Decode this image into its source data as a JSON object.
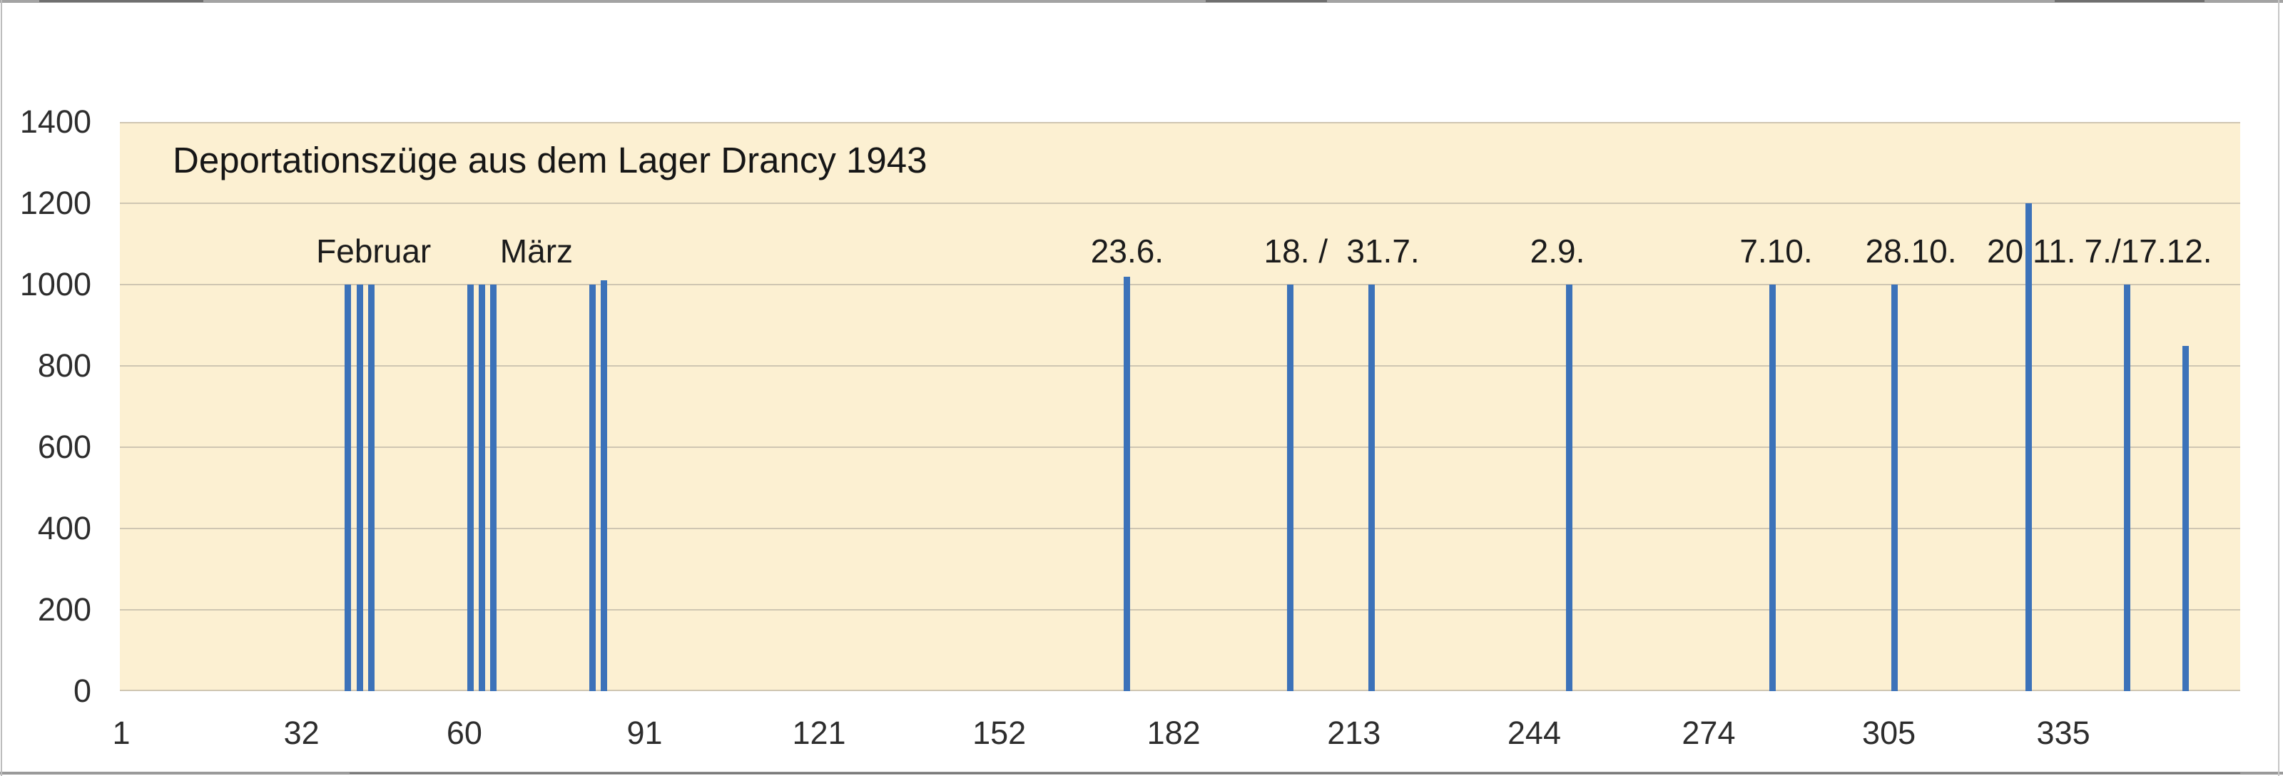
{
  "chart_data": {
    "type": "bar",
    "title": "Deportationszüge aus dem Lager Drancy 1943",
    "xlabel": "",
    "ylabel": "",
    "colors": {
      "plot_background": "#fcf0d2",
      "bar": "#3c72b9",
      "gridline": "#cfc6b2",
      "text": "#1b1b1b"
    },
    "grid": "on",
    "legend": "none",
    "y_axis": {
      "min": 0,
      "max": 1400,
      "ticks": [
        1400,
        1200,
        1000,
        800,
        600,
        400,
        200,
        0
      ]
    },
    "x_axis": {
      "unit": "day of year",
      "min": 1,
      "max": 365,
      "ticks": [
        1,
        32,
        60,
        91,
        121,
        152,
        182,
        213,
        244,
        274,
        305,
        335
      ]
    },
    "bars": [
      {
        "pos": 40,
        "value": 1000
      },
      {
        "pos": 42,
        "value": 1000
      },
      {
        "pos": 44,
        "value": 1000
      },
      {
        "pos": 61,
        "value": 1000
      },
      {
        "pos": 63,
        "value": 1000
      },
      {
        "pos": 65,
        "value": 1000
      },
      {
        "pos": 82,
        "value": 1000
      },
      {
        "pos": 84,
        "value": 1010
      },
      {
        "pos": 174,
        "value": 1020
      },
      {
        "pos": 202,
        "value": 1000
      },
      {
        "pos": 216,
        "value": 1000
      },
      {
        "pos": 250,
        "value": 1000
      },
      {
        "pos": 285,
        "value": 1000
      },
      {
        "pos": 306,
        "value": 1000
      },
      {
        "pos": 329,
        "value": 1200
      },
      {
        "pos": 346,
        "value": 1000
      },
      {
        "pos": 356,
        "value": 850
      }
    ],
    "annotations": [
      {
        "label": "Februar",
        "pos": 44.4
      },
      {
        "label": "März",
        "pos": 72.4
      },
      {
        "label": "23.6.",
        "pos": 174
      },
      {
        "label": "18. /",
        "pos": 203
      },
      {
        "label": "31.7.",
        "pos": 218
      },
      {
        "label": "2.9.",
        "pos": 248
      },
      {
        "label": "7.10.",
        "pos": 285.6
      },
      {
        "label": "28.10.",
        "pos": 308.8
      },
      {
        "label": "20.11.",
        "pos": 329.5
      },
      {
        "label": "7./17.12.",
        "pos": 349.6
      }
    ]
  }
}
